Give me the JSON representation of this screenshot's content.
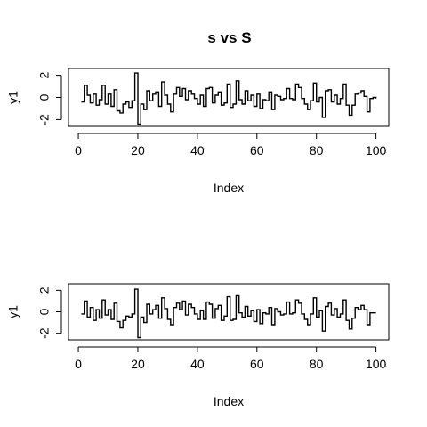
{
  "title": "s vs S",
  "chart_data": [
    {
      "type": "line",
      "style": "step",
      "title": "s vs S",
      "xlabel": "Index",
      "ylabel": "y1",
      "xlim": [
        1,
        100
      ],
      "ylim": [
        -2.4,
        2.4
      ],
      "x_ticks": [
        0,
        20,
        40,
        60,
        80,
        100
      ],
      "y_ticks": [
        -2,
        0,
        2
      ],
      "x": [
        1,
        2,
        3,
        4,
        5,
        6,
        7,
        8,
        9,
        10,
        11,
        12,
        13,
        14,
        15,
        16,
        17,
        18,
        19,
        20,
        21,
        22,
        23,
        24,
        25,
        26,
        27,
        28,
        29,
        30,
        31,
        32,
        33,
        34,
        35,
        36,
        37,
        38,
        39,
        40,
        41,
        42,
        43,
        44,
        45,
        46,
        47,
        48,
        49,
        50,
        51,
        52,
        53,
        54,
        55,
        56,
        57,
        58,
        59,
        60,
        61,
        62,
        63,
        64,
        65,
        66,
        67,
        68,
        69,
        70,
        71,
        72,
        73,
        74,
        75,
        76,
        77,
        78,
        79,
        80,
        81,
        82,
        83,
        84,
        85,
        86,
        87,
        88,
        89,
        90,
        91,
        92,
        93,
        94,
        95,
        96,
        97,
        98,
        99,
        100
      ],
      "series": [
        {
          "values": [
            -0.4,
            1.1,
            0.2,
            -0.5,
            0.3,
            -0.7,
            -0.2,
            1.1,
            -0.6,
            0.3,
            -0.8,
            0.7,
            -1.2,
            -1.4,
            -0.6,
            -0.4,
            -0.9,
            -0.3,
            2.2,
            -2.4,
            -0.6,
            -1.1,
            0.6,
            -0.3,
            0.3,
            0.5,
            -0.8,
            1.4,
            0.2,
            -0.6,
            -1.3,
            0.3,
            0.9,
            0.1,
            0.8,
            -0.2,
            0.6,
            0.3,
            -0.1,
            -0.6,
            0.2,
            -0.8,
            0.8,
            0.9,
            -0.5,
            0.2,
            0.5,
            -0.7,
            -0.5,
            1.2,
            -0.9,
            -0.6,
            1.5,
            -0.2,
            -0.6,
            0.6,
            -0.3,
            0.2,
            -0.8,
            0.3,
            -1.0,
            -0.2,
            -0.3,
            0.5,
            -1.1,
            0.2,
            0.1,
            -0.2,
            -0.1,
            0.8,
            -0.1,
            -0.2,
            1.2,
            0.9,
            -0.1,
            -0.6,
            -1.1,
            -0.3,
            1.3,
            -0.4,
            0.0,
            -1.8,
            0.6,
            0.7,
            -0.4,
            0.2,
            -0.6,
            -0.1,
            1.2,
            -0.7,
            -1.6,
            -0.7,
            0.3,
            0.4,
            0.6,
            0.1,
            -1.3,
            -0.1,
            0.0,
            -0.1
          ]
        }
      ]
    },
    {
      "type": "line",
      "style": "step",
      "title": "",
      "xlabel": "Index",
      "ylabel": "y1",
      "xlim": [
        1,
        100
      ],
      "ylim": [
        -2.4,
        2.4
      ],
      "x_ticks": [
        0,
        20,
        40,
        60,
        80,
        100
      ],
      "y_ticks": [
        -2,
        0,
        2
      ],
      "x": [
        1,
        2,
        3,
        4,
        5,
        6,
        7,
        8,
        9,
        10,
        11,
        12,
        13,
        14,
        15,
        16,
        17,
        18,
        19,
        20,
        21,
        22,
        23,
        24,
        25,
        26,
        27,
        28,
        29,
        30,
        31,
        32,
        33,
        34,
        35,
        36,
        37,
        38,
        39,
        40,
        41,
        42,
        43,
        44,
        45,
        46,
        47,
        48,
        49,
        50,
        51,
        52,
        53,
        54,
        55,
        56,
        57,
        58,
        59,
        60,
        61,
        62,
        63,
        64,
        65,
        66,
        67,
        68,
        69,
        70,
        71,
        72,
        73,
        74,
        75,
        76,
        77,
        78,
        79,
        80,
        81,
        82,
        83,
        84,
        85,
        86,
        87,
        88,
        89,
        90,
        91,
        92,
        93,
        94,
        95,
        96,
        97,
        98,
        99,
        100
      ],
      "series": [
        {
          "values": [
            -0.2,
            1.0,
            -0.5,
            0.4,
            -0.8,
            0.2,
            -0.6,
            1.1,
            -0.3,
            0.2,
            -0.7,
            0.8,
            -0.9,
            -1.5,
            -0.8,
            -0.4,
            -0.5,
            -0.2,
            2.1,
            -2.4,
            -0.5,
            -1.0,
            0.7,
            -0.2,
            0.2,
            0.6,
            -0.6,
            1.3,
            0.3,
            -0.7,
            -1.2,
            0.4,
            0.8,
            0.2,
            1.0,
            -0.3,
            0.7,
            0.4,
            -0.2,
            -0.7,
            0.1,
            -0.7,
            0.9,
            0.7,
            -0.6,
            0.3,
            0.6,
            -0.8,
            -0.4,
            1.4,
            -0.8,
            -0.7,
            1.5,
            -0.1,
            -0.5,
            0.5,
            -0.4,
            0.1,
            -0.9,
            0.2,
            -1.1,
            -0.1,
            -0.2,
            0.4,
            -1.2,
            0.3,
            0.0,
            -0.3,
            -0.2,
            0.9,
            -0.2,
            -0.1,
            1.1,
            0.8,
            -0.2,
            -0.7,
            -1.2,
            -0.2,
            1.3,
            -0.5,
            0.1,
            -1.8,
            0.5,
            0.8,
            -0.3,
            0.3,
            -0.5,
            -0.2,
            1.1,
            -0.8,
            -1.6,
            -0.6,
            0.4,
            0.2,
            0.6,
            0.2,
            -1.2,
            -0.1,
            -0.1,
            -0.1
          ]
        }
      ]
    }
  ]
}
